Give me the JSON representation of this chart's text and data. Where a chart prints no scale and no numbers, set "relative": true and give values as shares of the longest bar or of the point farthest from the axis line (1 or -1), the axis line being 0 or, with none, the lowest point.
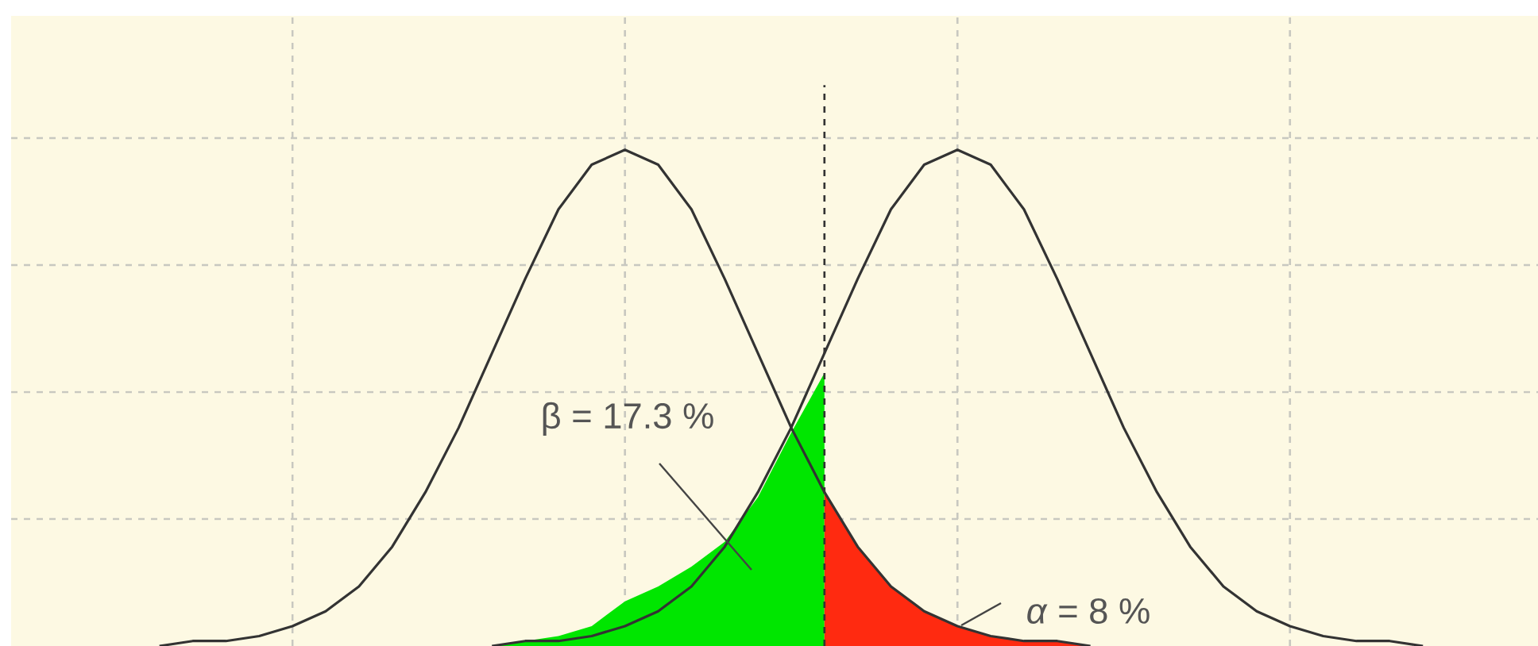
{
  "chart_data": {
    "type": "line",
    "relative": true,
    "grid": true,
    "categories": [
      null,
      null,
      null,
      null,
      null,
      null,
      null,
      null,
      null,
      null,
      null,
      null,
      null,
      null,
      null,
      null,
      null,
      null,
      null,
      null,
      null,
      null,
      null,
      null,
      null,
      null,
      null,
      null,
      null,
      null,
      null,
      null,
      null,
      null,
      null,
      null,
      null,
      null,
      null,
      null,
      null,
      null,
      null,
      null,
      null,
      null
    ],
    "series": [
      {
        "type": "area",
        "color": "#00e600",
        "values": [
          null,
          null,
          null,
          null,
          null,
          null,
          null,
          null,
          null,
          null,
          null,
          null,
          null,
          null,
          0,
          0.01,
          0.02,
          0.04,
          0.09,
          0.12,
          0.16,
          0.21,
          0.3,
          0.43,
          0.55,
          null,
          null,
          null,
          null,
          null,
          null,
          null,
          null,
          null,
          null,
          null,
          null,
          null,
          null,
          null,
          null,
          null,
          null,
          null,
          null,
          null
        ]
      },
      {
        "type": "area",
        "color": "#ff2a10",
        "values": [
          null,
          null,
          null,
          null,
          null,
          null,
          null,
          null,
          null,
          null,
          null,
          null,
          null,
          null,
          null,
          null,
          null,
          null,
          null,
          null,
          null,
          null,
          null,
          null,
          0.31,
          0.2,
          0.12,
          0.07,
          0.04,
          0.02,
          0.01,
          0.01,
          0,
          0,
          null,
          null,
          null,
          null,
          null,
          null,
          null,
          null,
          null,
          null,
          null,
          null
        ]
      },
      {
        "color": "#333333",
        "values": [
          null,
          null,
          null,
          null,
          0,
          0.01,
          0.01,
          0.02,
          0.04,
          0.07,
          0.12,
          0.2,
          0.31,
          0.44,
          0.59,
          0.74,
          0.88,
          0.97,
          1,
          0.97,
          0.88,
          0.74,
          0.59,
          0.44,
          0.31,
          0.2,
          0.12,
          0.07,
          0.04,
          0.02,
          0.01,
          0.01,
          0,
          null,
          null,
          null,
          null,
          null,
          null,
          null,
          null,
          null,
          null,
          null,
          null,
          null
        ]
      },
      {
        "color": "#333333",
        "values": [
          null,
          null,
          null,
          null,
          null,
          null,
          null,
          null,
          null,
          null,
          null,
          null,
          null,
          null,
          0,
          0.01,
          0.01,
          0.02,
          0.04,
          0.07,
          0.12,
          0.2,
          0.31,
          0.44,
          0.59,
          0.74,
          0.88,
          0.97,
          1,
          0.97,
          0.88,
          0.74,
          0.59,
          0.44,
          0.31,
          0.2,
          0.12,
          0.07,
          0.04,
          0.02,
          0.01,
          0.01,
          0,
          null,
          null,
          null
        ]
      }
    ],
    "ref_lines": [
      {
        "axis": "x",
        "color": "#333333",
        "line_style": "dashed"
      }
    ],
    "annotations": [
      "β = 17.3 %",
      "*α* = 8 %"
    ]
  }
}
